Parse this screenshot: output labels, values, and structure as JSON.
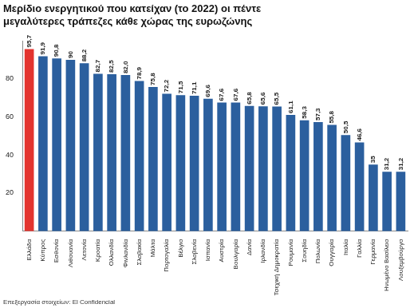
{
  "chart_data": {
    "type": "bar",
    "title": [
      "Μερίδιο ενεργητικού που κατείχαν (το 2022) οι πέντε",
      "μεγαλύτερες τράπεζες κάθε χώρας της ευρωζώνης"
    ],
    "source": "Επεξεργασία στοιχείων: El Confidencial",
    "categories": [
      "Ελλάδα",
      "Κύπρος",
      "Εσθονία",
      "Λιθουανία",
      "Λετονία",
      "Κροατία",
      "Ολλανδία",
      "Φινλανδία",
      "Σλοβακία",
      "Μάλτα",
      "Πορτογαλία",
      "Βέλγιο",
      "Σλοβενία",
      "Ισπανία",
      "Αυστρία",
      "Βουλγαρία",
      "Δανία",
      "Ιρλανδία",
      "Τσεχική Δημοκρατία",
      "Ρουμανία",
      "Σουηδία",
      "Πολωνία",
      "Ουγγαρία",
      "Ιταλία",
      "Γαλλία",
      "Γερμανία",
      "Ηνωμένο Βασίλειο",
      "Λουξεμβούργο"
    ],
    "values": [
      95.7,
      91.9,
      90.8,
      90,
      88.2,
      82.7,
      82.5,
      82.0,
      78.9,
      75.8,
      72.2,
      71.5,
      71.1,
      69.6,
      67.6,
      67.6,
      65.8,
      65.6,
      65.5,
      61.1,
      58.3,
      57.3,
      55.8,
      50.5,
      46.6,
      35,
      31.2,
      31.2
    ],
    "value_labels": [
      "95,7",
      "91,9",
      "90,8",
      "90",
      "88,2",
      "82,7",
      "82,5",
      "82,0",
      "78,9",
      "75,8",
      "72,2",
      "71,5",
      "71,1",
      "69,6",
      "67,6",
      "67,6",
      "65,8",
      "65,6",
      "65,5",
      "61,1",
      "58,3",
      "57,3",
      "55,8",
      "50,5",
      "46,6",
      "35",
      "31,2",
      "31,2"
    ],
    "colors": [
      "#e3342f",
      "#2b5f9e",
      "#2b5f9e",
      "#2b5f9e",
      "#2b5f9e",
      "#2b5f9e",
      "#2b5f9e",
      "#2b5f9e",
      "#2b5f9e",
      "#2b5f9e",
      "#2b5f9e",
      "#2b5f9e",
      "#2b5f9e",
      "#2b5f9e",
      "#2b5f9e",
      "#2b5f9e",
      "#2b5f9e",
      "#2b5f9e",
      "#2b5f9e",
      "#2b5f9e",
      "#2b5f9e",
      "#2b5f9e",
      "#2b5f9e",
      "#2b5f9e",
      "#2b5f9e",
      "#2b5f9e",
      "#2b5f9e",
      "#2b5f9e"
    ],
    "ylim": [
      0,
      100
    ],
    "yticks": [
      20,
      40,
      60,
      80
    ],
    "grid": false,
    "data_labels": true
  }
}
